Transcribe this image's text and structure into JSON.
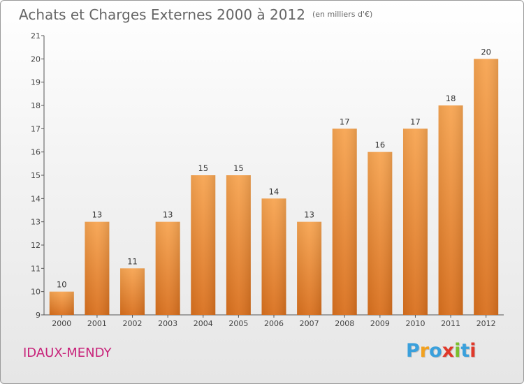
{
  "title": "Achats et Charges Externes 2000 à 2012",
  "subtitle": "(en milliers d'€)",
  "commune": "IDAUX-MENDY",
  "brand": {
    "letters": [
      "P",
      "r",
      "o",
      "x",
      "i",
      "t",
      "i"
    ],
    "colors": [
      "#3aa0dc",
      "#f2a11f",
      "#3aa0dc",
      "#e0382a",
      "#7cbf2e",
      "#3aa0dc",
      "#e0382a"
    ]
  },
  "chart_data": {
    "type": "bar",
    "categories": [
      "2000",
      "2001",
      "2002",
      "2003",
      "2004",
      "2005",
      "2006",
      "2007",
      "2008",
      "2009",
      "2010",
      "2011",
      "2012"
    ],
    "values": [
      10,
      13,
      11,
      13,
      15,
      15,
      14,
      13,
      17,
      16,
      17,
      18,
      20
    ],
    "data_labels": [
      "10",
      "13",
      "11",
      "13",
      "15",
      "15",
      "14",
      "13",
      "17",
      "16",
      "17",
      "18",
      "20"
    ],
    "title": "Achats et Charges Externes 2000 à 2012",
    "subtitle": "(en milliers d'€)",
    "xlabel": "",
    "ylabel": "",
    "ylim": [
      9,
      21
    ],
    "yticks": [
      "9",
      "10",
      "11",
      "12",
      "13",
      "14",
      "15",
      "16",
      "17",
      "18",
      "19",
      "20",
      "21"
    ],
    "grid": false,
    "bar_color_top": "#f7a552",
    "bar_color_bottom": "#d9701e"
  }
}
